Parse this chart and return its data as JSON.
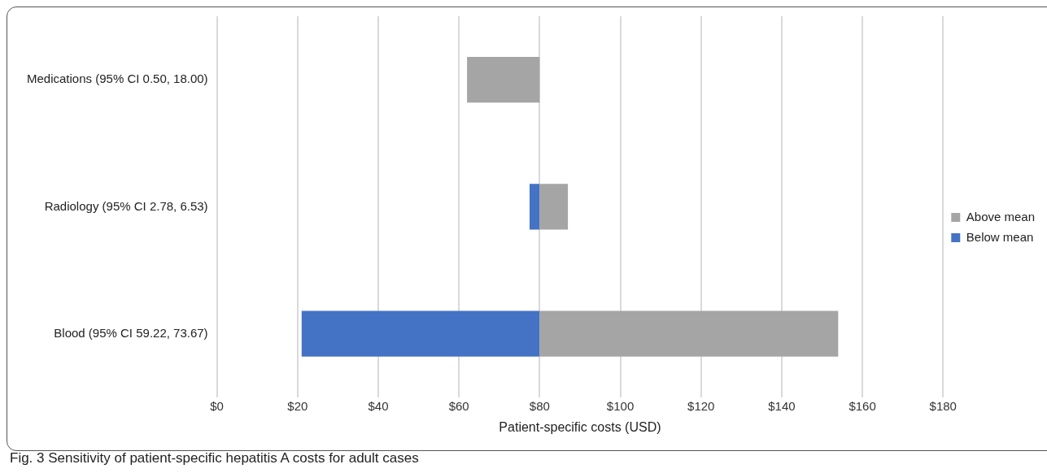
{
  "chart_data": {
    "type": "bar",
    "orientation": "horizontal",
    "xlabel": "Patient-specific costs (USD)",
    "categories": [
      "Medications (95% CI 0.50, 18.00)",
      "Radiology (95% CI 2.78, 6.53)",
      "Blood (95% CI 59.22, 73.67)"
    ],
    "series": [
      {
        "name": "Above mean",
        "color": "#a5a5a5",
        "base": [
          62,
          80,
          80
        ],
        "values": [
          18,
          7,
          74
        ]
      },
      {
        "name": "Below mean",
        "color": "#4472c4",
        "base": [
          null,
          77.5,
          21
        ],
        "values": [
          null,
          2.5,
          59
        ]
      }
    ],
    "xlim": [
      0,
      180
    ],
    "xticks": [
      {
        "value": 0,
        "label": "$0"
      },
      {
        "value": 20,
        "label": "$20"
      },
      {
        "value": 40,
        "label": "$40"
      },
      {
        "value": 60,
        "label": "$60"
      },
      {
        "value": 80,
        "label": "$80"
      },
      {
        "value": 100,
        "label": "$100"
      },
      {
        "value": 120,
        "label": "$120"
      },
      {
        "value": 140,
        "label": "$140"
      },
      {
        "value": 160,
        "label": "$160"
      },
      {
        "value": 180,
        "label": "$180"
      }
    ],
    "grid": "x",
    "legend": "right",
    "annotations": [
      "Fig. 3  Sensitivity of patient-specific hepatitis A costs for adult cases"
    ]
  }
}
